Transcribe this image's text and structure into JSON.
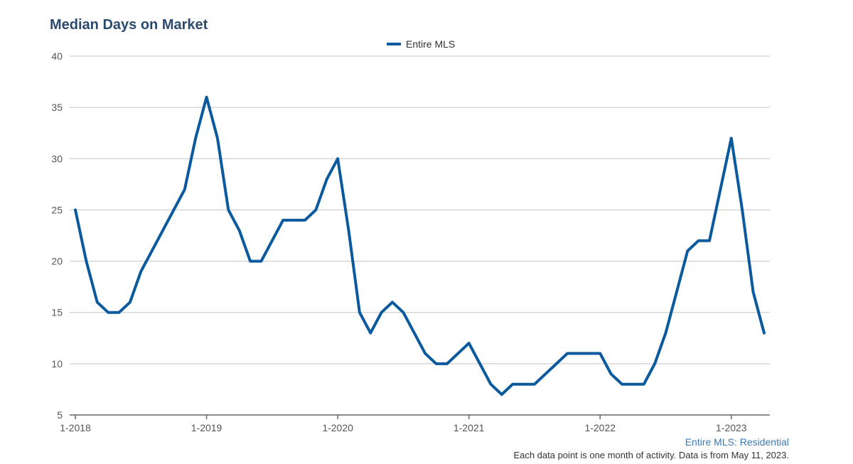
{
  "colors": {
    "title": "#2c4a6e",
    "series": "#0b5a9e",
    "grid": "#c4c4c4",
    "axis_text": "#555555",
    "source": "#3c79b4",
    "footnote": "#333333"
  },
  "title": "Median Days on Market",
  "source_label": "Entire MLS: Residential",
  "footnote": "Each data point is one month of activity. Data is from May 11, 2023.",
  "chart_data": {
    "type": "line",
    "title": "Median Days on Market",
    "xlabel": "",
    "ylabel": "",
    "ylim": [
      5,
      40
    ],
    "y_ticks": [
      5,
      10,
      15,
      20,
      25,
      30,
      35,
      40
    ],
    "x_tick_labels": [
      "1-2018",
      "1-2019",
      "1-2020",
      "1-2021",
      "1-2022",
      "1-2023"
    ],
    "grid": true,
    "legend": "top-center",
    "series": [
      {
        "name": "Entire MLS",
        "color": "#0b5a9e",
        "x": [
          "1-2018",
          "2-2018",
          "3-2018",
          "4-2018",
          "5-2018",
          "6-2018",
          "7-2018",
          "8-2018",
          "9-2018",
          "10-2018",
          "11-2018",
          "12-2018",
          "1-2019",
          "2-2019",
          "3-2019",
          "4-2019",
          "5-2019",
          "6-2019",
          "7-2019",
          "8-2019",
          "9-2019",
          "10-2019",
          "11-2019",
          "12-2019",
          "1-2020",
          "2-2020",
          "3-2020",
          "4-2020",
          "5-2020",
          "6-2020",
          "7-2020",
          "8-2020",
          "9-2020",
          "10-2020",
          "11-2020",
          "12-2020",
          "1-2021",
          "2-2021",
          "3-2021",
          "4-2021",
          "5-2021",
          "6-2021",
          "7-2021",
          "8-2021",
          "9-2021",
          "10-2021",
          "11-2021",
          "12-2021",
          "1-2022",
          "2-2022",
          "3-2022",
          "4-2022",
          "5-2022",
          "6-2022",
          "7-2022",
          "8-2022",
          "9-2022",
          "10-2022",
          "11-2022",
          "12-2022",
          "1-2023",
          "2-2023",
          "3-2023",
          "4-2023"
        ],
        "values": [
          25,
          20,
          16,
          15,
          15,
          16,
          19,
          21,
          23,
          25,
          27,
          32,
          36,
          32,
          25,
          23,
          20,
          20,
          22,
          24,
          24,
          24,
          25,
          28,
          30,
          23,
          15,
          13,
          15,
          16,
          15,
          13,
          11,
          10,
          10,
          11,
          12,
          10,
          8,
          7,
          8,
          8,
          8,
          9,
          10,
          11,
          11,
          11,
          11,
          9,
          8,
          8,
          8,
          10,
          13,
          17,
          21,
          22,
          22,
          27,
          32,
          25,
          17,
          13
        ]
      }
    ]
  }
}
